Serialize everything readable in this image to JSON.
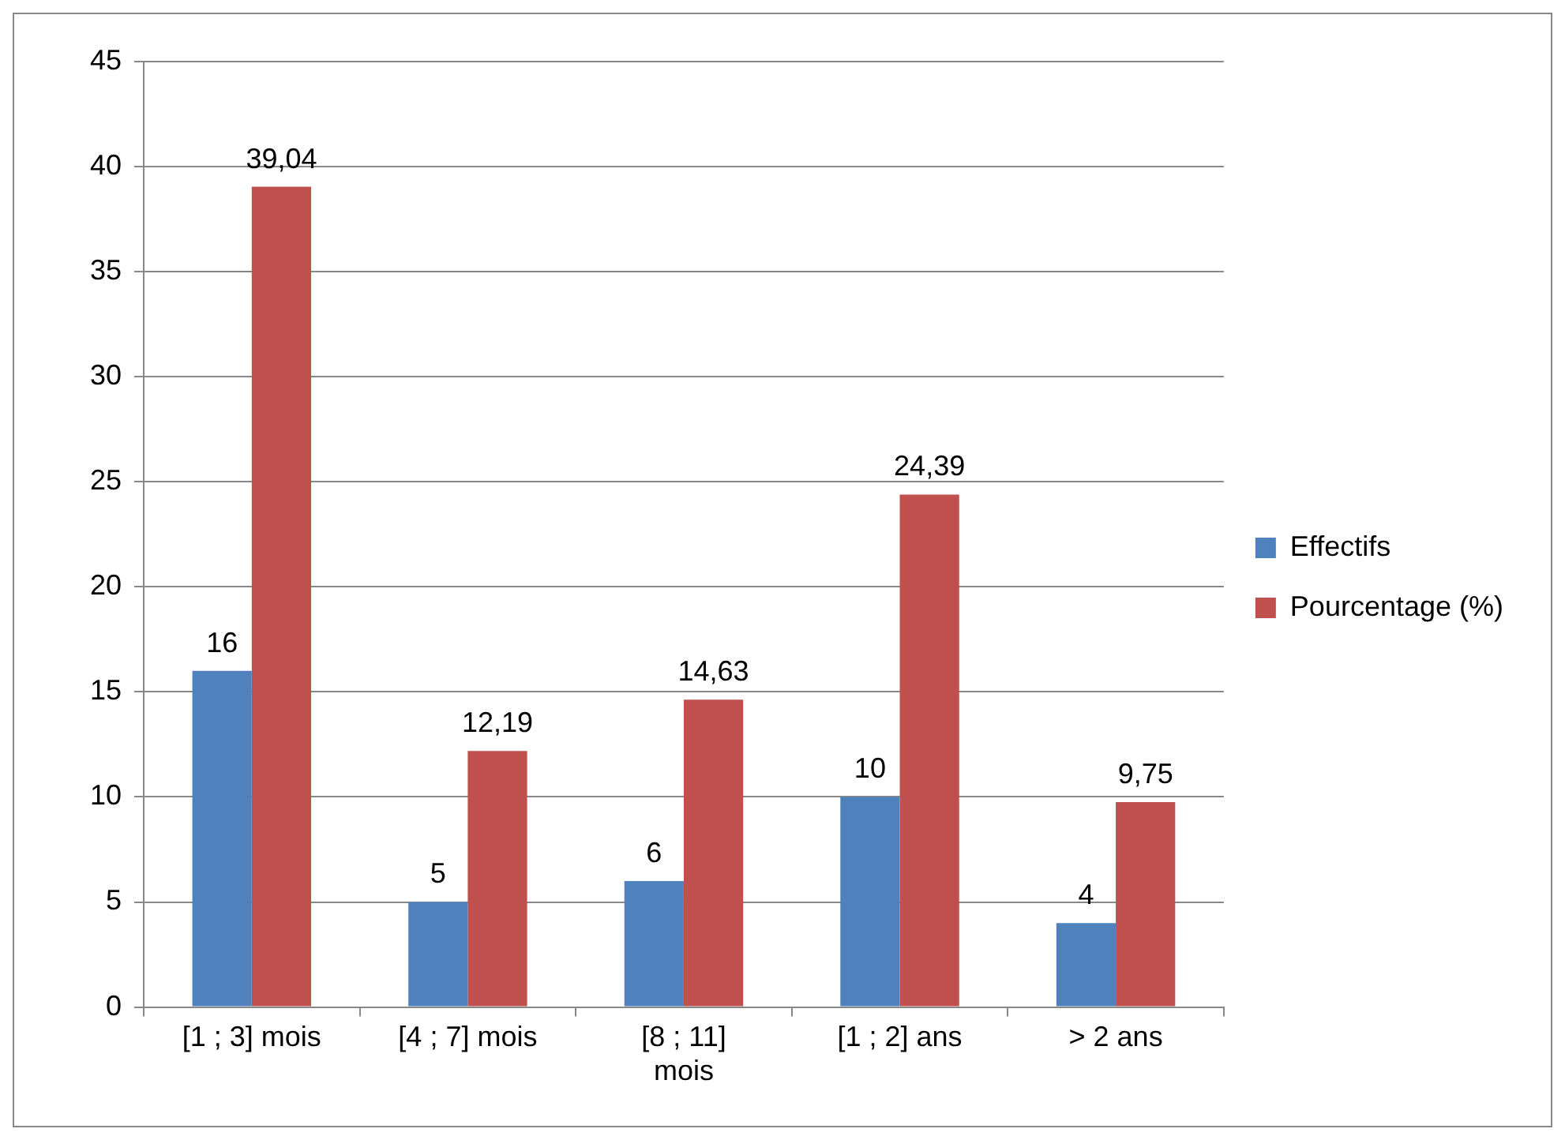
{
  "chart_data": {
    "type": "bar",
    "categories": [
      "[1 ; 3] mois",
      "[4 ; 7] mois",
      "[8 ; 11] mois",
      "[1 ; 2] ans",
      "> 2 ans"
    ],
    "series": [
      {
        "name": "Effectifs",
        "color": "#4f81bd",
        "values": [
          16,
          5,
          6,
          10,
          4
        ],
        "value_labels": [
          "16",
          "5",
          "6",
          "10",
          "4"
        ]
      },
      {
        "name": "Pourcentage (%)",
        "color": "#c0504d",
        "values": [
          39.04,
          12.19,
          14.63,
          24.39,
          9.75
        ],
        "value_labels": [
          "39,04",
          "12,19",
          "14,63",
          "24,39",
          "9,75"
        ]
      }
    ],
    "ylim": [
      0,
      45
    ],
    "yticks": [
      0,
      5,
      10,
      15,
      20,
      25,
      30,
      35,
      40,
      45
    ],
    "grid": "y",
    "legend": "right"
  }
}
